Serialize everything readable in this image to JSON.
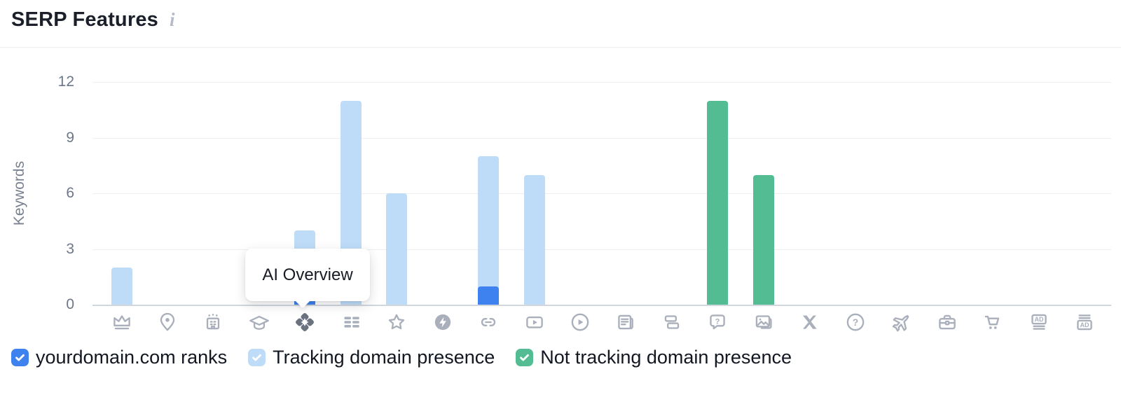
{
  "header": {
    "title": "SERP Features",
    "info_icon": "i"
  },
  "colors": {
    "ranks_blue": "#3E82F0",
    "tracking_light_blue": "#BEDCF8",
    "not_tracking_green": "#53BC92",
    "icon_gray": "#A9AFBB",
    "icon_active_gray": "#6A7280",
    "gridline": "#EDEFF2",
    "axis_baseline": "#D2D6DD",
    "tick_text": "#6D7789",
    "title_text": "#1B1F29",
    "legend_text": "#121722",
    "tooltip_bg": "#FFFFFF"
  },
  "chart_data": {
    "type": "bar",
    "title": "SERP Features",
    "xlabel": "",
    "ylabel": "Keywords",
    "ylim": [
      0,
      12
    ],
    "yticks": [
      0,
      3,
      6,
      9,
      12
    ],
    "grid": true,
    "legend_position": "bottom",
    "categories": [
      "crown",
      "location-pin",
      "hotel-pack",
      "graduation-cap",
      "ai-overview",
      "list",
      "star-rating",
      "amp",
      "link",
      "video",
      "video-carousel",
      "news",
      "stacked-cards",
      "question-bubble",
      "image-pack",
      "x-twitter",
      "question-circle",
      "flights",
      "jobs",
      "shopping-cart",
      "ads-top",
      "ads-bottom"
    ],
    "series": [
      {
        "key": "ranks",
        "name": "yourdomain.com ranks",
        "color": "#3E82F0",
        "values": [
          0,
          0,
          0,
          0,
          1,
          0,
          0,
          0,
          1,
          0,
          0,
          0,
          0,
          0,
          0,
          0,
          0,
          0,
          0,
          0,
          0,
          0
        ]
      },
      {
        "key": "tracking",
        "name": "Tracking domain presence",
        "color": "#BEDCF8",
        "values": [
          2,
          0,
          0,
          0,
          4,
          11,
          6,
          0,
          8,
          7,
          0,
          0,
          0,
          0,
          0,
          0,
          0,
          0,
          0,
          0,
          0,
          0
        ]
      },
      {
        "key": "not_tracking",
        "name": "Not tracking domain presence",
        "color": "#53BC92",
        "values": [
          0,
          0,
          0,
          0,
          0,
          0,
          0,
          0,
          0,
          0,
          0,
          0,
          0,
          11,
          7,
          0,
          0,
          0,
          0,
          0,
          0,
          0
        ]
      }
    ],
    "tooltip": {
      "text": "AI Overview",
      "category": "ai-overview",
      "category_index": 4
    }
  }
}
